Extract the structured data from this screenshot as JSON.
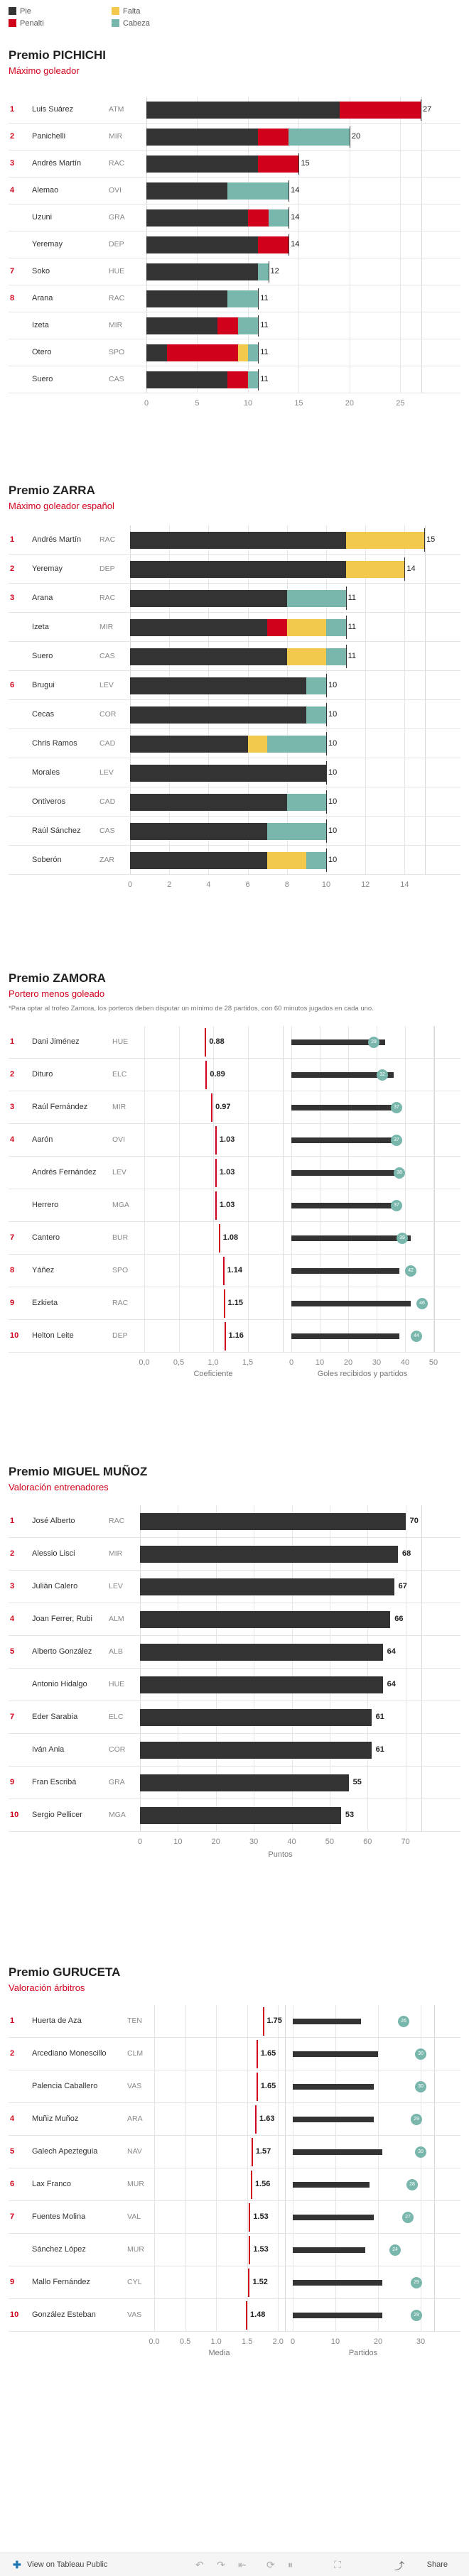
{
  "legend": [
    {
      "label": "Pie",
      "color": "#333333"
    },
    {
      "label": "Falta",
      "color": "#f2c94c"
    },
    {
      "label": "Penalti",
      "color": "#d0021b"
    },
    {
      "label": "Cabeza",
      "color": "#79b7ad"
    }
  ],
  "chart_data": [
    {
      "type": "bar",
      "title": "Premio PICHICHI",
      "subtitle": "Máximo goleador",
      "stacked": true,
      "x_ticks": [
        0,
        5,
        10,
        15,
        20,
        25
      ],
      "xlim": [
        0,
        27
      ],
      "series_names": [
        "Pie",
        "Penalti",
        "Falta",
        "Cabeza"
      ],
      "rows": [
        {
          "rank": "1",
          "name": "Luis Suárez",
          "team": "ATM",
          "parts": [
            19,
            8,
            0,
            0
          ],
          "total": "27"
        },
        {
          "rank": "2",
          "name": "Panichelli",
          "team": "MIR",
          "parts": [
            11,
            3,
            0,
            6
          ],
          "total": "20"
        },
        {
          "rank": "3",
          "name": "Andrés Martín",
          "team": "RAC",
          "parts": [
            11,
            4,
            0,
            0
          ],
          "total": "15"
        },
        {
          "rank": "4",
          "name": "Alemao",
          "team": "OVI",
          "parts": [
            8,
            0,
            0,
            6
          ],
          "total": "14"
        },
        {
          "rank": "",
          "name": "Uzuni",
          "team": "GRA",
          "parts": [
            10,
            2,
            0,
            2
          ],
          "total": "14"
        },
        {
          "rank": "",
          "name": "Yeremay",
          "team": "DEP",
          "parts": [
            11,
            3,
            0,
            0
          ],
          "total": "14"
        },
        {
          "rank": "7",
          "name": "Soko",
          "team": "HUE",
          "parts": [
            11,
            0,
            0,
            1
          ],
          "total": "12"
        },
        {
          "rank": "8",
          "name": "Arana",
          "team": "RAC",
          "parts": [
            8,
            0,
            0,
            3
          ],
          "total": "11"
        },
        {
          "rank": "",
          "name": "Izeta",
          "team": "MIR",
          "parts": [
            7,
            2,
            0,
            2
          ],
          "total": "11"
        },
        {
          "rank": "",
          "name": "Otero",
          "team": "SPO",
          "parts": [
            2,
            7,
            1,
            1
          ],
          "total": "11"
        },
        {
          "rank": "",
          "name": "Suero",
          "team": "CAS",
          "parts": [
            8,
            2,
            0,
            1
          ],
          "total": "11"
        }
      ]
    },
    {
      "type": "bar",
      "title": "Premio ZARRA",
      "subtitle": "Máximo goleador español",
      "stacked": true,
      "x_ticks": [
        0,
        2,
        4,
        6,
        8,
        10,
        12,
        14
      ],
      "xlim": [
        0,
        15
      ],
      "series_names": [
        "Pie",
        "Penalti",
        "Falta",
        "Cabeza"
      ],
      "rows": [
        {
          "rank": "1",
          "name": "Andrés Martín",
          "team": "RAC",
          "parts": [
            11,
            0,
            4,
            0
          ],
          "total": "15"
        },
        {
          "rank": "2",
          "name": "Yeremay",
          "team": "DEP",
          "parts": [
            11,
            0,
            3,
            0
          ],
          "total": "14"
        },
        {
          "rank": "3",
          "name": "Arana",
          "team": "RAC",
          "parts": [
            8,
            0,
            0,
            3
          ],
          "total": "11"
        },
        {
          "rank": "",
          "name": "Izeta",
          "team": "MIR",
          "parts": [
            7,
            1,
            2,
            1
          ],
          "total": "11"
        },
        {
          "rank": "",
          "name": "Suero",
          "team": "CAS",
          "parts": [
            8,
            0,
            2,
            1
          ],
          "total": "11"
        },
        {
          "rank": "6",
          "name": "Brugui",
          "team": "LEV",
          "parts": [
            9,
            0,
            0,
            1
          ],
          "total": "10"
        },
        {
          "rank": "",
          "name": "Cecas",
          "team": "COR",
          "parts": [
            9,
            0,
            0,
            1
          ],
          "total": "10"
        },
        {
          "rank": "",
          "name": "Chris Ramos",
          "team": "CAD",
          "parts": [
            6,
            0,
            1,
            3
          ],
          "total": "10"
        },
        {
          "rank": "",
          "name": "Morales",
          "team": "LEV",
          "parts": [
            10,
            0,
            0,
            0
          ],
          "total": "10"
        },
        {
          "rank": "",
          "name": "Ontiveros",
          "team": "CAD",
          "parts": [
            8,
            0,
            0,
            2
          ],
          "total": "10"
        },
        {
          "rank": "",
          "name": "Raúl Sánchez",
          "team": "CAS",
          "parts": [
            7,
            0,
            0,
            3
          ],
          "total": "10"
        },
        {
          "rank": "",
          "name": "Soberón",
          "team": "ZAR",
          "parts": [
            7,
            0,
            2,
            1
          ],
          "total": "10"
        }
      ]
    },
    {
      "type": "dot-bar",
      "title": "Premio ZAMORA",
      "subtitle": "Portero menos goleado",
      "note": "*Para optar al trofeo Zamora, los porteros deben disputar un mínimo de 28 partidos, con 60 minutos jugados en cada uno.",
      "left_label": "Coeficiente",
      "right_label": "Goles recibidos y partidos",
      "left_ticks": [
        "0,0",
        "0,5",
        "1,0",
        "1,5"
      ],
      "left_xlim": [
        0,
        2
      ],
      "right_ticks": [
        "0",
        "10",
        "20",
        "30",
        "40",
        "50"
      ],
      "right_xlim": [
        0,
        50
      ],
      "rows": [
        {
          "rank": "1",
          "name": "Dani Jiménez",
          "team": "HUE",
          "coef": 0.88,
          "coef_label": "0.88",
          "goals": 33,
          "matches": 29
        },
        {
          "rank": "2",
          "name": "Dituro",
          "team": "ELC",
          "coef": 0.89,
          "coef_label": "0.89",
          "goals": 36,
          "matches": 32
        },
        {
          "rank": "3",
          "name": "Raúl Fernández",
          "team": "MIR",
          "coef": 0.97,
          "coef_label": "0.97",
          "goals": 38,
          "matches": 37
        },
        {
          "rank": "4",
          "name": "Aarón",
          "team": "OVI",
          "coef": 1.03,
          "coef_label": "1.03",
          "goals": 38,
          "matches": 37
        },
        {
          "rank": "",
          "name": "Andrés Fernández",
          "team": "LEV",
          "coef": 1.03,
          "coef_label": "1.03",
          "goals": 39,
          "matches": 38
        },
        {
          "rank": "",
          "name": "Herrero",
          "team": "MGA",
          "coef": 1.03,
          "coef_label": "1.03",
          "goals": 38,
          "matches": 37
        },
        {
          "rank": "7",
          "name": "Cantero",
          "team": "BUR",
          "coef": 1.08,
          "coef_label": "1.08",
          "goals": 42,
          "matches": 39
        },
        {
          "rank": "8",
          "name": "Yáñez",
          "team": "SPO",
          "coef": 1.14,
          "coef_label": "1.14",
          "goals": 38,
          "matches": 42
        },
        {
          "rank": "9",
          "name": "Ezkieta",
          "team": "RAC",
          "coef": 1.15,
          "coef_label": "1.15",
          "goals": 42,
          "matches": 46
        },
        {
          "rank": "10",
          "name": "Helton Leite",
          "team": "DEP",
          "coef": 1.16,
          "coef_label": "1.16",
          "goals": 38,
          "matches": 44
        }
      ]
    },
    {
      "type": "bar",
      "title": "Premio MIGUEL MUÑOZ",
      "subtitle": "Valoración entrenadores",
      "x_label": "Puntos",
      "x_ticks": [
        0,
        10,
        20,
        30,
        40,
        50,
        60,
        70
      ],
      "xlim": [
        0,
        74
      ],
      "rows": [
        {
          "rank": "1",
          "name": "José Alberto",
          "team": "RAC",
          "value": 70
        },
        {
          "rank": "2",
          "name": "Alessio Lisci",
          "team": "MIR",
          "value": 68
        },
        {
          "rank": "3",
          "name": "Julián Calero",
          "team": "LEV",
          "value": 67
        },
        {
          "rank": "4",
          "name": "Joan Ferrer, Rubi",
          "team": "ALM",
          "value": 66
        },
        {
          "rank": "5",
          "name": "Alberto González",
          "team": "ALB",
          "value": 64
        },
        {
          "rank": "",
          "name": "Antonio Hidalgo",
          "team": "HUE",
          "value": 64
        },
        {
          "rank": "7",
          "name": "Eder Sarabia",
          "team": "ELC",
          "value": 61
        },
        {
          "rank": "",
          "name": "Iván Ania",
          "team": "COR",
          "value": 61
        },
        {
          "rank": "9",
          "name": "Fran Escribá",
          "team": "GRA",
          "value": 55
        },
        {
          "rank": "10",
          "name": "Sergio Pellicer",
          "team": "MGA",
          "value": 53
        }
      ]
    },
    {
      "type": "dot-bar",
      "title": "Premio GURUCETA",
      "subtitle": "Valoración árbitros",
      "left_label": "Media",
      "right_label": "Partidos",
      "left_ticks": [
        "0.0",
        "0.5",
        "1.0",
        "1.5",
        "2.0"
      ],
      "left_xlim": [
        0,
        2.1
      ],
      "right_ticks": [
        "0",
        "10",
        "20",
        "30"
      ],
      "right_xlim": [
        0,
        33
      ],
      "rows": [
        {
          "rank": "1",
          "name": "Huerta de Aza",
          "team": "TEN",
          "coef": 1.75,
          "coef_label": "1.75",
          "goals": 16,
          "matches": 26
        },
        {
          "rank": "2",
          "name": "Arcediano Monescillo",
          "team": "CLM",
          "coef": 1.65,
          "coef_label": "1.65",
          "goals": 20,
          "matches": 30
        },
        {
          "rank": "",
          "name": "Palencia Caballero",
          "team": "VAS",
          "coef": 1.65,
          "coef_label": "1.65",
          "goals": 19,
          "matches": 30
        },
        {
          "rank": "4",
          "name": "Muñiz Muñoz",
          "team": "ARA",
          "coef": 1.63,
          "coef_label": "1.63",
          "goals": 19,
          "matches": 29
        },
        {
          "rank": "5",
          "name": "Galech Apezteguia",
          "team": "NAV",
          "coef": 1.57,
          "coef_label": "1.57",
          "goals": 21,
          "matches": 30
        },
        {
          "rank": "6",
          "name": "Lax Franco",
          "team": "MUR",
          "coef": 1.56,
          "coef_label": "1.56",
          "goals": 18,
          "matches": 28
        },
        {
          "rank": "7",
          "name": "Fuentes Molina",
          "team": "VAL",
          "coef": 1.53,
          "coef_label": "1.53",
          "goals": 19,
          "matches": 27
        },
        {
          "rank": "",
          "name": "Sánchez López",
          "team": "MUR",
          "coef": 1.53,
          "coef_label": "1.53",
          "goals": 17,
          "matches": 24
        },
        {
          "rank": "9",
          "name": "Mallo Fernández",
          "team": "CYL",
          "coef": 1.52,
          "coef_label": "1.52",
          "goals": 21,
          "matches": 29
        },
        {
          "rank": "10",
          "name": "González Esteban",
          "team": "VAS",
          "coef": 1.48,
          "coef_label": "1.48",
          "goals": 21,
          "matches": 29
        }
      ]
    }
  ],
  "footer": {
    "tableau_label": "View on Tableau Public",
    "share_label": "Share"
  }
}
